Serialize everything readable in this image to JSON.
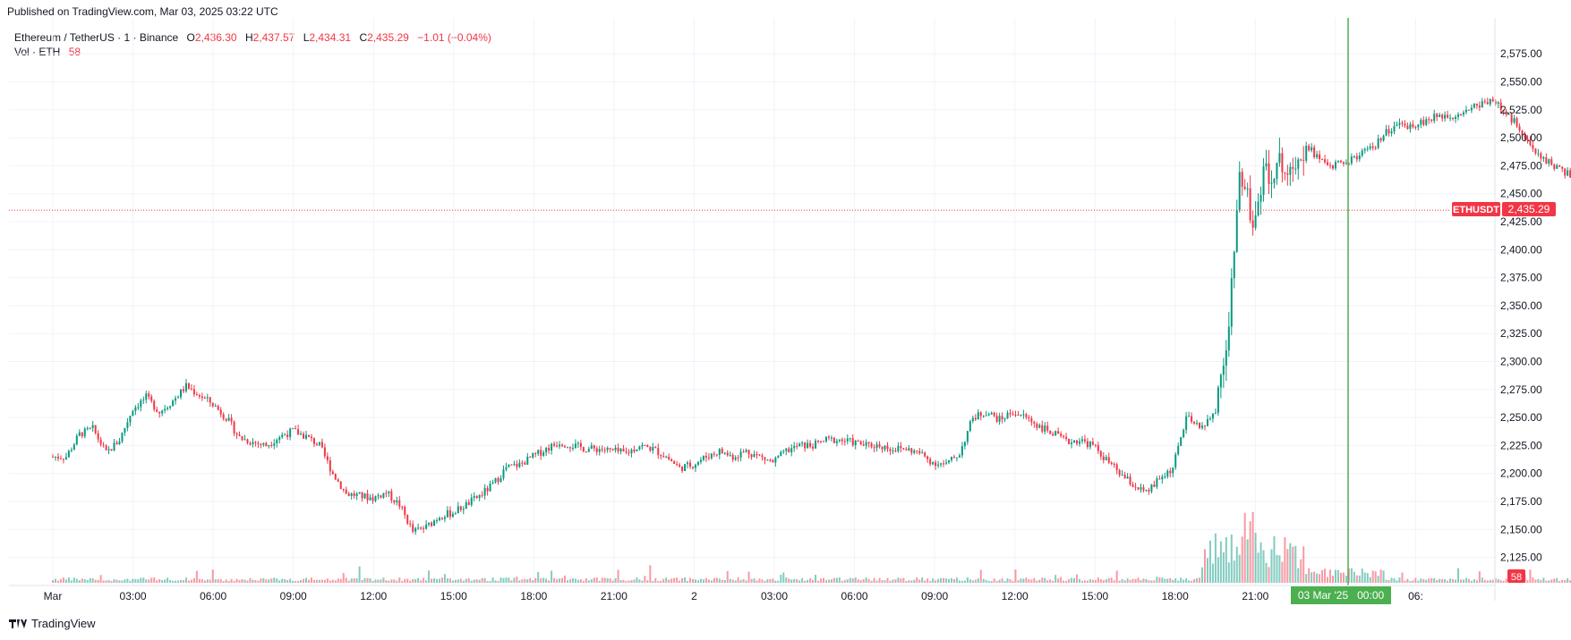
{
  "header": {
    "published": "Published on TradingView.com, Mar 03, 2025 03:22 UTC"
  },
  "legend": {
    "symbol": "Ethereum / TetherUS · 1 · Binance",
    "o_label": "O",
    "o_value": "2,436.30",
    "h_label": "H",
    "h_value": "2,437.57",
    "l_label": "L",
    "l_value": "2,434.31",
    "c_label": "C",
    "c_value": "2,435.29",
    "change": "−1.01 (−0.04%)",
    "vol_label": "Vol · ETH",
    "vol_value": "58"
  },
  "price_tag": {
    "symbol": "ETHUSDT",
    "price": "2,435.29"
  },
  "vol_tag": "58",
  "crosshair_label": "03 Mar '25   00:00",
  "brand": "TradingView",
  "colors": {
    "up": "#089981",
    "down": "#f23645",
    "crosshair": "#4caf50",
    "grid": "#f0f3fa"
  },
  "chart_data": {
    "type": "candlestick",
    "symbol": "ETHUSDT",
    "interval": "1 minute",
    "y_ticks": [
      "2,575.00",
      "2,550.00",
      "2,525.00",
      "2,500.00",
      "2,475.00",
      "2,450.00",
      "2,425.00",
      "2,400.00",
      "2,375.00",
      "2,350.00",
      "2,325.00",
      "2,300.00",
      "2,275.00",
      "2,250.00",
      "2,225.00",
      "2,200.00",
      "2,175.00",
      "2,150.00",
      "2,125.00"
    ],
    "ylim": [
      2100,
      2600
    ],
    "x_ticks": [
      "Mar",
      "03:00",
      "06:00",
      "09:00",
      "12:00",
      "15:00",
      "18:00",
      "21:00",
      "2",
      "03:00",
      "06:00",
      "09:00",
      "12:00",
      "15:00",
      "18:00",
      "21:00",
      "03:00",
      "06:"
    ],
    "crosshair_time": "2025-03-03 00:00",
    "last_close": 2435.29,
    "price_path_hours": [
      [
        0,
        2215
      ],
      [
        0.5,
        2215
      ],
      [
        1,
        2235
      ],
      [
        1.5,
        2240
      ],
      [
        2,
        2218
      ],
      [
        2.5,
        2230
      ],
      [
        3,
        2258
      ],
      [
        3.5,
        2268
      ],
      [
        4,
        2255
      ],
      [
        4.5,
        2265
      ],
      [
        5,
        2278
      ],
      [
        5.5,
        2270
      ],
      [
        6,
        2262
      ],
      [
        6.5,
        2250
      ],
      [
        7,
        2232
      ],
      [
        7.5,
        2228
      ],
      [
        8,
        2225
      ],
      [
        8.5,
        2233
      ],
      [
        9,
        2238
      ],
      [
        9.5,
        2233
      ],
      [
        10,
        2225
      ],
      [
        10.5,
        2200
      ],
      [
        11,
        2182
      ],
      [
        11.5,
        2180
      ],
      [
        12,
        2178
      ],
      [
        12.5,
        2183
      ],
      [
        13,
        2172
      ],
      [
        13.5,
        2148
      ],
      [
        14,
        2152
      ],
      [
        14.5,
        2162
      ],
      [
        15,
        2165
      ],
      [
        15.5,
        2172
      ],
      [
        16,
        2180
      ],
      [
        16.5,
        2190
      ],
      [
        17,
        2205
      ],
      [
        17.5,
        2208
      ],
      [
        18,
        2215
      ],
      [
        18.5,
        2222
      ],
      [
        19,
        2228
      ],
      [
        19.5,
        2225
      ],
      [
        20,
        2222
      ],
      [
        20.5,
        2222
      ],
      [
        21,
        2220
      ],
      [
        21.5,
        2218
      ],
      [
        22,
        2225
      ],
      [
        22.5,
        2222
      ],
      [
        23,
        2215
      ],
      [
        23.5,
        2205
      ],
      [
        24,
        2208
      ],
      [
        24.5,
        2215
      ],
      [
        25,
        2220
      ],
      [
        25.5,
        2215
      ],
      [
        26,
        2220
      ],
      [
        26.5,
        2215
      ],
      [
        27,
        2210
      ],
      [
        27.5,
        2220
      ],
      [
        28,
        2225
      ],
      [
        28.5,
        2225
      ],
      [
        29,
        2230
      ],
      [
        29.5,
        2230
      ],
      [
        30,
        2228
      ],
      [
        30.5,
        2225
      ],
      [
        31,
        2225
      ],
      [
        31.5,
        2222
      ],
      [
        32,
        2222
      ],
      [
        32.5,
        2218
      ],
      [
        33,
        2210
      ],
      [
        33.5,
        2208
      ],
      [
        34,
        2218
      ],
      [
        34.5,
        2250
      ],
      [
        35,
        2255
      ],
      [
        35.5,
        2248
      ],
      [
        36,
        2255
      ],
      [
        36.5,
        2250
      ],
      [
        37,
        2242
      ],
      [
        37.5,
        2236
      ],
      [
        38,
        2228
      ],
      [
        38.5,
        2230
      ],
      [
        39,
        2225
      ],
      [
        39.5,
        2212
      ],
      [
        40,
        2200
      ],
      [
        40.5,
        2190
      ],
      [
        41,
        2182
      ],
      [
        41.5,
        2195
      ],
      [
        42,
        2205
      ],
      [
        42.5,
        2250
      ],
      [
        43,
        2240
      ],
      [
        43.5,
        2250
      ],
      [
        44,
        2310
      ],
      [
        44.5,
        2465
      ],
      [
        45,
        2430
      ],
      [
        45.5,
        2470
      ],
      [
        46,
        2475
      ],
      [
        46.5,
        2480
      ],
      [
        47,
        2495
      ],
      [
        47.5,
        2480
      ],
      [
        48,
        2475
      ],
      [
        48.5,
        2478
      ],
      [
        49,
        2485
      ],
      [
        49.5,
        2490
      ],
      [
        50,
        2505
      ],
      [
        50.5,
        2510
      ],
      [
        51,
        2512
      ],
      [
        51.5,
        2515
      ],
      [
        52,
        2520
      ],
      [
        52.5,
        2520
      ],
      [
        53,
        2525
      ],
      [
        53.5,
        2530
      ],
      [
        54,
        2535
      ],
      [
        54.5,
        2520
      ],
      [
        55,
        2510
      ],
      [
        55.5,
        2488
      ],
      [
        56,
        2480
      ],
      [
        56.5,
        2472
      ],
      [
        57,
        2465
      ],
      [
        57.5,
        2455
      ],
      [
        58,
        2445
      ],
      [
        58.5,
        2425
      ],
      [
        59,
        2440
      ],
      [
        59.5,
        2445
      ],
      [
        60,
        2435
      ]
    ]
  }
}
